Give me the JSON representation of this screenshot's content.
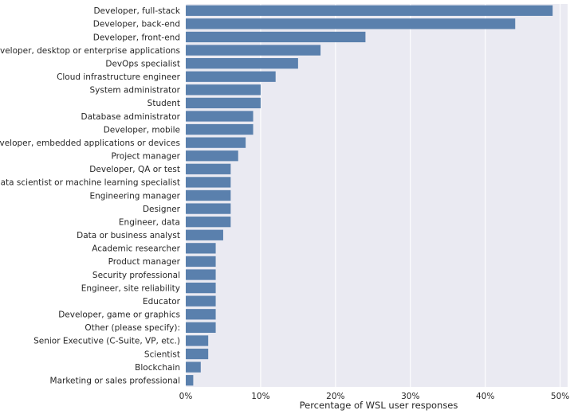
{
  "chart_data": {
    "type": "bar",
    "orientation": "horizontal",
    "title": "",
    "xlabel": "Percentage of WSL user responses",
    "ylabel": "",
    "xlim": [
      0,
      51
    ],
    "x_ticks": [
      0,
      10,
      20,
      30,
      40,
      50
    ],
    "x_tick_labels": [
      "0%",
      "10%",
      "20%",
      "30%",
      "40%",
      "50%"
    ],
    "grid": true,
    "bar_color": "#5a80ad",
    "background_color": "#eaeaf2",
    "categories": [
      "Developer, full-stack",
      "Developer, back-end",
      "Developer, front-end",
      "Developer, desktop or enterprise applications",
      "DevOps specialist",
      "Cloud infrastructure engineer",
      "System administrator",
      "Student",
      "Database administrator",
      "Developer, mobile",
      "Developer, embedded applications or devices",
      "Project manager",
      "Developer, QA or test",
      "Data scientist or machine learning specialist",
      "Engineering manager",
      "Designer",
      "Engineer, data",
      "Data or business analyst",
      "Academic researcher",
      "Product manager",
      "Security professional",
      "Engineer, site reliability",
      "Educator",
      "Developer, game or graphics",
      "Other (please specify):",
      "Senior Executive (C-Suite, VP, etc.)",
      "Scientist",
      "Blockchain",
      "Marketing or sales professional"
    ],
    "values": [
      49,
      44,
      24,
      18,
      15,
      12,
      10,
      10,
      9,
      9,
      8,
      7,
      6,
      6,
      6,
      6,
      6,
      5,
      4,
      4,
      4,
      4,
      4,
      4,
      4,
      3,
      3,
      2,
      1
    ]
  }
}
